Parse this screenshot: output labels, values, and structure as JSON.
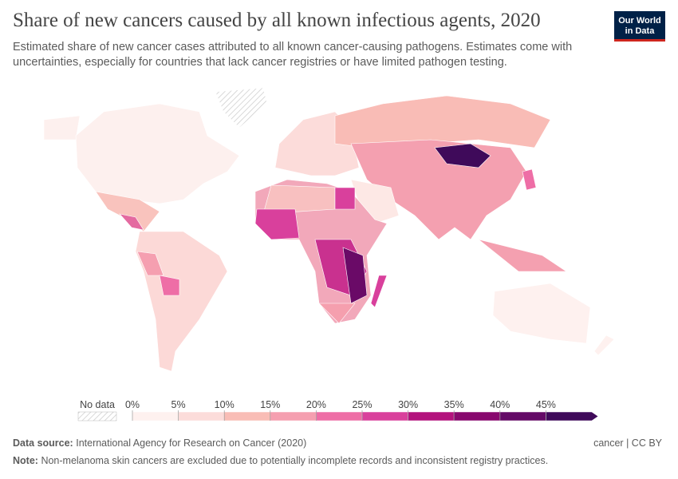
{
  "header": {
    "title": "Share of new cancers caused by all known infectious agents, 2020",
    "subtitle": "Estimated share of new cancer cases attributed to all known cancer-causing pathogens. Estimates come with uncertainties, especially for countries that lack cancer registries or have limited pathogen testing.",
    "logo_lines": [
      "Our World",
      "in Data"
    ]
  },
  "legend": {
    "no_data_label": "No data",
    "ticks": [
      {
        "value": 0,
        "label": "0%"
      },
      {
        "value": 5,
        "label": "5%"
      },
      {
        "value": 10,
        "label": "10%"
      },
      {
        "value": 15,
        "label": "15%"
      },
      {
        "value": 20,
        "label": "20%"
      },
      {
        "value": 25,
        "label": "25%"
      },
      {
        "value": 30,
        "label": "30%"
      },
      {
        "value": 35,
        "label": "35%"
      },
      {
        "value": 40,
        "label": "40%"
      },
      {
        "value": 45,
        "label": "45%"
      }
    ],
    "colors": [
      "#fef1ef",
      "#fcdcda",
      "#f9bdb6",
      "#f59fb0",
      "#ee6ea6",
      "#d9409c",
      "#b3127d",
      "#88086e",
      "#640a67",
      "#3f0a5a"
    ]
  },
  "footer": {
    "source_label": "Data source:",
    "source": "International Agency for Research on Cancer (2020)",
    "license": "cancer | CC BY",
    "note_label": "Note:",
    "note": "Non-melanoma skin cancers are excluded due to potentially incomplete records and inconsistent registry practices."
  }
}
